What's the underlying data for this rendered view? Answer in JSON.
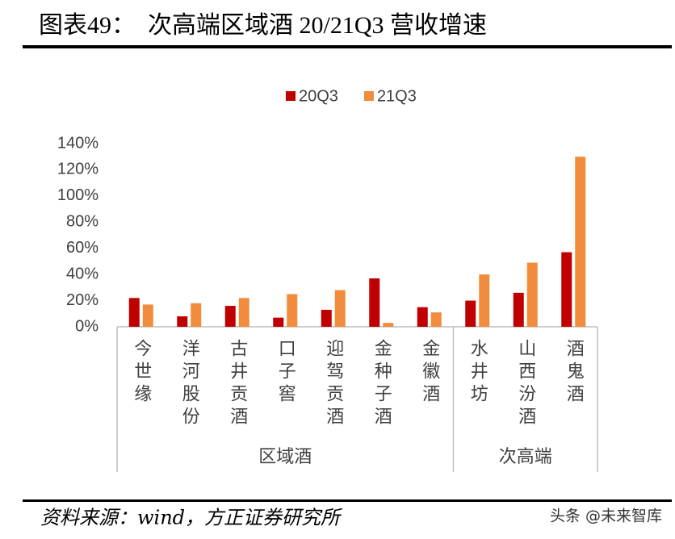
{
  "chart_data": {
    "type": "bar",
    "title": "图表49：  次高端区域酒 20/21Q3 营收增速",
    "groups": [
      {
        "name": "区域酒",
        "categories": [
          "今世缘",
          "洋河股份",
          "古井贡酒",
          "口子窖",
          "迎驾贡酒",
          "金种子酒",
          "金徽酒"
        ]
      },
      {
        "name": "次高端",
        "categories": [
          "水井坊",
          "山西汾酒",
          "酒鬼酒"
        ]
      }
    ],
    "series": [
      {
        "name": "20Q3",
        "color": "#c00000",
        "values": [
          22,
          8,
          16,
          7,
          13,
          37,
          15,
          20,
          26,
          57
        ]
      },
      {
        "name": "21Q3",
        "color": "#f08c3c",
        "values": [
          17,
          18,
          22,
          25,
          28,
          3,
          11,
          40,
          49,
          130
        ]
      }
    ],
    "ylim": [
      0,
      140
    ],
    "yticks": [
      {
        "value": 0,
        "label": "0%"
      },
      {
        "value": 20,
        "label": "20%"
      },
      {
        "value": 40,
        "label": "40%"
      },
      {
        "value": 60,
        "label": "60%"
      },
      {
        "value": 80,
        "label": "80%"
      },
      {
        "value": 100,
        "label": "100%"
      },
      {
        "value": 120,
        "label": "120%"
      },
      {
        "value": 140,
        "label": "140%"
      }
    ],
    "legend": "top"
  },
  "source": "资料来源：wind，方正证券研究所",
  "watermark": "头条 @未来智库"
}
